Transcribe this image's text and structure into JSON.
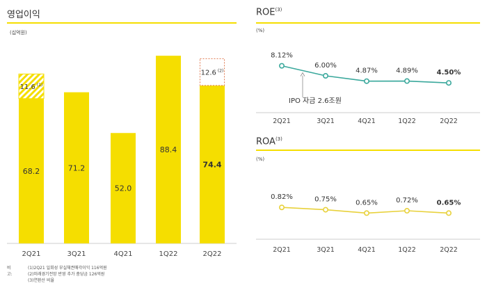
{
  "bar_panel": {
    "title": "영업이익",
    "unit": "(십억원)",
    "accent": "#F5DE00",
    "special_color": "#E07A50"
  },
  "roe_panel": {
    "title": "ROE",
    "title_sup": "(3)",
    "unit": "(%)",
    "line_color": "#3AA89C"
  },
  "roa_panel": {
    "title": "ROA",
    "title_sup": "(3)",
    "unit": "(%)",
    "line_color": "#E8D13A"
  },
  "footnotes": {
    "label": "비고:",
    "lines": [
      "(1)2Q21 일회성 부실채권매각이익 116억원",
      "(2)미래경기전망 반영 추가 충당금 126억원",
      "(3)연환산 비율"
    ]
  },
  "chart_data": [
    {
      "type": "bar",
      "title": "영업이익",
      "ylabel": "(십억원)",
      "categories": [
        "2Q21",
        "3Q21",
        "4Q21",
        "1Q22",
        "2Q22"
      ],
      "series": [
        {
          "values": [
            68.2,
            71.2,
            52.0,
            88.4,
            74.4
          ],
          "labels": [
            "68.2",
            "71.2",
            "52.0",
            "88.4",
            "74.4"
          ]
        },
        {
          "values": [
            11.6,
            0,
            0,
            0,
            12.6
          ],
          "labels": [
            "11.6",
            "",
            "",
            "",
            "12.6"
          ],
          "superscripts": [
            "(1)",
            "",
            "",
            "",
            "(2)"
          ]
        }
      ],
      "ylim": [
        0,
        95
      ],
      "highlight_index": 4
    },
    {
      "type": "line",
      "title": "ROE",
      "ylabel": "(%)",
      "categories": [
        "2Q21",
        "3Q21",
        "4Q21",
        "1Q22",
        "2Q22"
      ],
      "values": [
        8.12,
        6.0,
        4.87,
        4.89,
        4.5
      ],
      "labels": [
        "8.12%",
        "6.00%",
        "4.87%",
        "4.89%",
        "4.50%"
      ],
      "ylim": [
        3.5,
        8.8
      ],
      "highlight_index": 4,
      "annotation": {
        "text": "IPO 자금 2.6조원"
      }
    },
    {
      "type": "line",
      "title": "ROA",
      "ylabel": "(%)",
      "categories": [
        "2Q21",
        "3Q21",
        "4Q21",
        "1Q22",
        "2Q22"
      ],
      "values": [
        0.82,
        0.75,
        0.65,
        0.72,
        0.65
      ],
      "labels": [
        "0.82%",
        "0.75%",
        "0.65%",
        "0.72%",
        "0.65%"
      ],
      "ylim": [
        0.2,
        1.2
      ],
      "highlight_index": 4
    }
  ]
}
